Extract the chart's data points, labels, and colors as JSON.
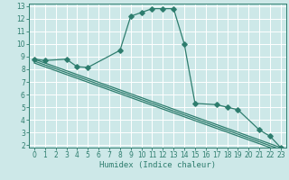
{
  "xlabel": "Humidex (Indice chaleur)",
  "bg_color": "#cde8e8",
  "grid_color": "#ffffff",
  "line_color": "#2e7d6e",
  "xlim": [
    -0.5,
    23.5
  ],
  "ylim": [
    1.8,
    13.2
  ],
  "xticks": [
    0,
    1,
    2,
    3,
    4,
    5,
    6,
    7,
    8,
    9,
    10,
    11,
    12,
    13,
    14,
    15,
    16,
    17,
    18,
    19,
    20,
    21,
    22,
    23
  ],
  "yticks": [
    2,
    3,
    4,
    5,
    6,
    7,
    8,
    9,
    10,
    11,
    12,
    13
  ],
  "series_main": {
    "x": [
      0,
      1,
      3,
      4,
      5,
      8,
      9,
      10,
      11,
      12,
      13,
      14,
      15,
      17,
      18,
      19,
      21,
      22,
      23
    ],
    "y": [
      8.8,
      8.7,
      8.8,
      8.2,
      8.15,
      9.5,
      12.2,
      12.5,
      12.8,
      12.8,
      12.8,
      10.0,
      5.3,
      5.2,
      5.0,
      4.8,
      3.2,
      2.7,
      1.8
    ]
  },
  "series_line1": {
    "x": [
      0,
      23
    ],
    "y": [
      8.8,
      1.8
    ]
  },
  "series_line2": {
    "x": [
      0,
      23
    ],
    "y": [
      8.8,
      1.8
    ]
  },
  "series_line3": {
    "x": [
      0,
      23
    ],
    "y": [
      8.8,
      1.8
    ]
  }
}
